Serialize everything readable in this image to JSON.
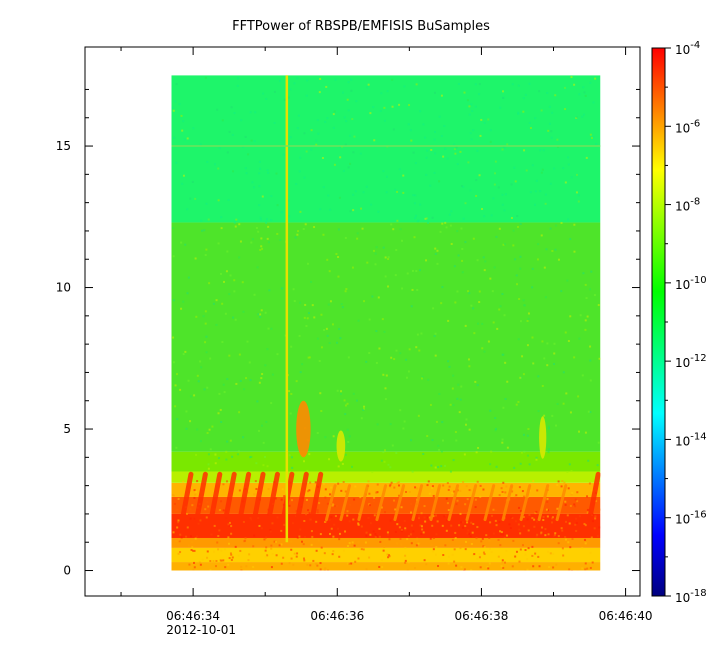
{
  "chart_data": {
    "type": "heatmap",
    "title": "FFTPower of RBSPB/EMFISIS  BuSamples",
    "xlabel": "",
    "ylabel": "",
    "x_start_label": "2012-10-01 06:46:33.7",
    "x_end_label": "2012-10-01 06:46:39.6",
    "x_date_label": "2012-10-01",
    "x_ticks": [
      {
        "t": 34,
        "label": "06:46:34"
      },
      {
        "t": 36,
        "label": "06:46:36"
      },
      {
        "t": 38,
        "label": "06:46:38"
      },
      {
        "t": 40,
        "label": "06:46:40"
      }
    ],
    "x_minor_ticks": [
      33,
      35,
      37,
      39
    ],
    "xlim_seconds": [
      32.5,
      40.2
    ],
    "data_x_range_seconds": [
      33.7,
      39.65
    ],
    "y_ticks": [
      0,
      5,
      10,
      15
    ],
    "ylim": [
      -0.9,
      18.5
    ],
    "data_y_range": [
      0,
      17.5
    ],
    "colorbar": {
      "scale": "log",
      "range": [
        1e-18,
        0.0001
      ],
      "colors": [
        "#00007f",
        "#0000ff",
        "#007fff",
        "#00ffff",
        "#00ff7f",
        "#00ff00",
        "#7fff00",
        "#ffff00",
        "#ff7f00",
        "#ff0000"
      ],
      "ticks": [
        {
          "exp": -4,
          "base": "10",
          "sup": "-4"
        },
        {
          "exp": -6,
          "base": "10",
          "sup": "-6"
        },
        {
          "exp": -8,
          "base": "10",
          "sup": "-8"
        },
        {
          "exp": -10,
          "base": "10",
          "sup": "-10"
        },
        {
          "exp": -12,
          "base": "10",
          "sup": "-12"
        },
        {
          "exp": -14,
          "base": "10",
          "sup": "-14"
        },
        {
          "exp": -16,
          "base": "10",
          "sup": "-16"
        },
        {
          "exp": -18,
          "base": "10",
          "sup": "-18"
        }
      ]
    },
    "bands": [
      {
        "y0": 0,
        "y1": 0.3,
        "color": "#ffb000"
      },
      {
        "y0": 0.3,
        "y1": 0.8,
        "color": "#ffd000"
      },
      {
        "y0": 0.8,
        "y1": 1.15,
        "color": "#ff9a00"
      },
      {
        "y0": 1.15,
        "y1": 2.0,
        "color": "#ff3000"
      },
      {
        "y0": 2.0,
        "y1": 2.6,
        "color": "#ff5a00"
      },
      {
        "y0": 2.6,
        "y1": 3.1,
        "color": "#ffb400"
      },
      {
        "y0": 3.1,
        "y1": 3.5,
        "color": "#b8f000"
      },
      {
        "y0": 3.5,
        "y1": 4.2,
        "color": "#7ae800"
      },
      {
        "y0": 4.2,
        "y1": 12.3,
        "color": "#4ee42a"
      },
      {
        "y0": 12.3,
        "y1": 17.5,
        "color": "#1ef56a"
      }
    ],
    "features": [
      {
        "name": "vertical-line",
        "x": 35.3,
        "y0": 1.0,
        "y1": 17.5,
        "color": "#e8e000"
      },
      {
        "name": "blob",
        "x": 35.53,
        "y": 5.0,
        "rx": 0.1,
        "ry": 1.0,
        "color": "#ff8a00"
      },
      {
        "name": "blob",
        "x": 36.05,
        "y": 4.4,
        "rx": 0.06,
        "ry": 0.55,
        "color": "#d8e800"
      },
      {
        "name": "blob",
        "x": 38.85,
        "y": 4.7,
        "rx": 0.05,
        "ry": 0.75,
        "color": "#d8e800"
      },
      {
        "name": "line",
        "x": 33.7,
        "y0": 15.0,
        "y1": 15.0,
        "x1": 39.65,
        "color": "#6fe35a"
      }
    ],
    "chorus_elements_x": [
      33.85,
      34.05,
      34.25,
      34.45,
      34.65,
      34.85,
      35.05,
      35.25,
      35.45,
      35.65,
      35.85,
      36.05,
      36.3,
      36.55,
      36.8,
      37.05,
      37.3,
      37.55,
      37.8,
      38.05,
      38.3,
      38.55,
      38.8,
      39.05,
      39.5
    ]
  }
}
